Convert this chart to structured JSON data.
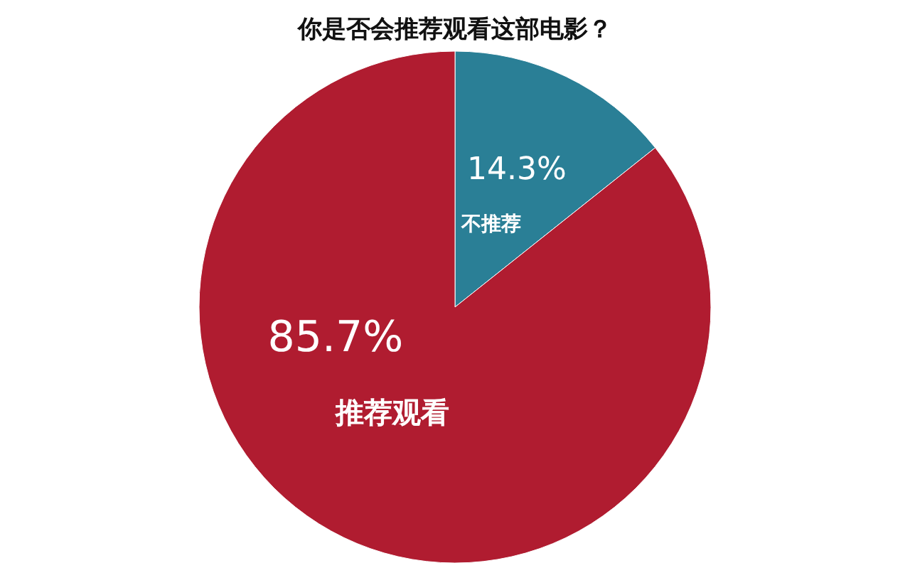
{
  "chart_data": {
    "type": "pie",
    "title": "你是否会推荐观看这部电影？",
    "categories": [
      "不推荐",
      "推荐观看"
    ],
    "values": [
      14.3,
      85.7
    ],
    "value_labels": [
      "14.3%",
      "85.7%"
    ],
    "colors": [
      "#2a7f96",
      "#b01c30"
    ]
  }
}
